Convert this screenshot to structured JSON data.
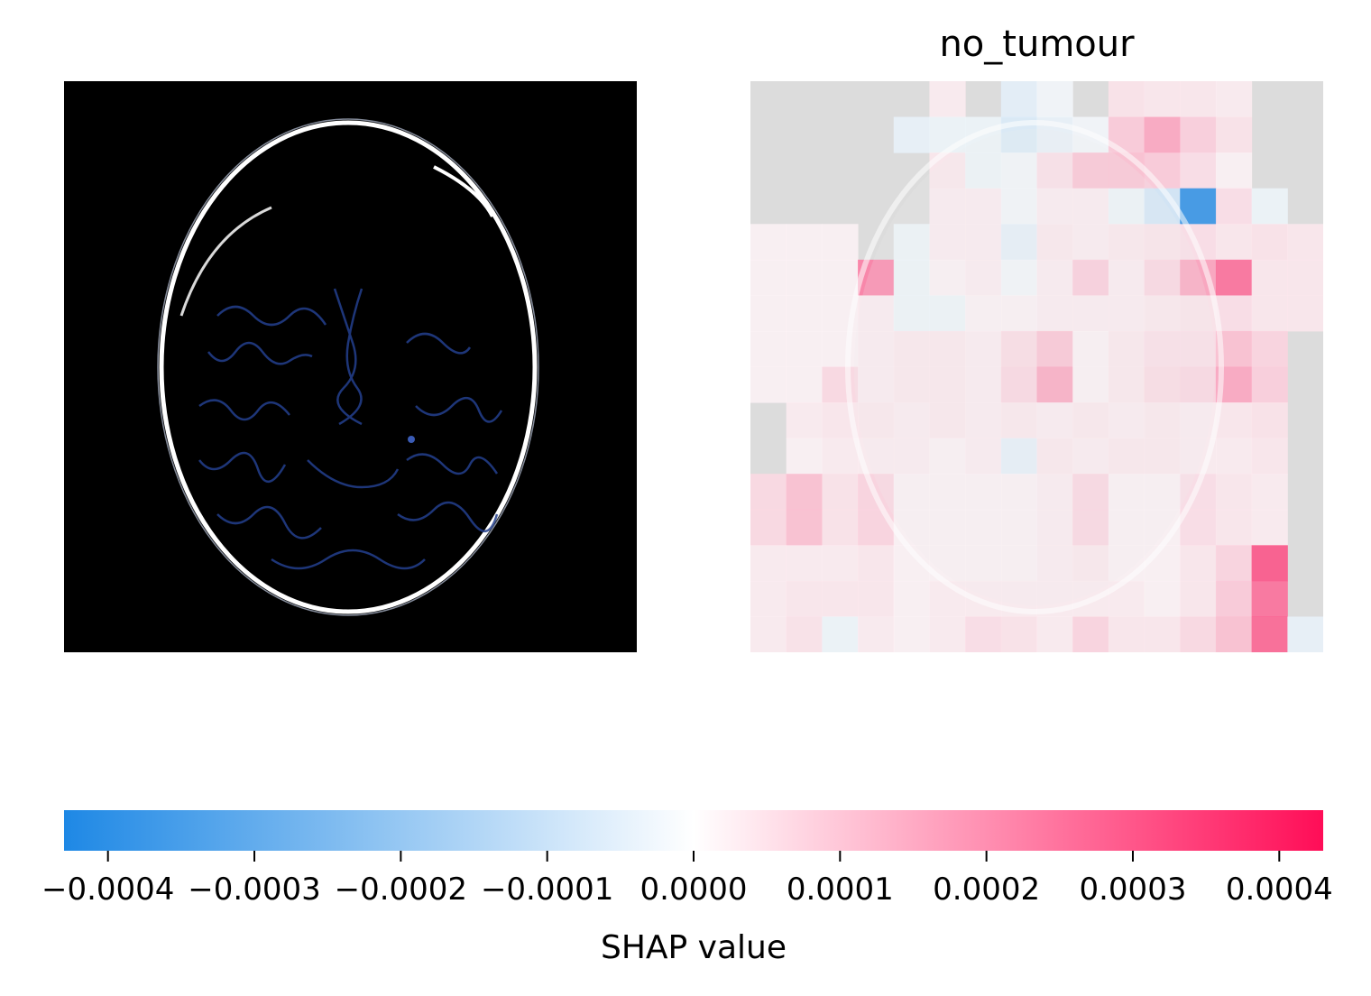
{
  "chart_data": {
    "type": "heatmap",
    "title": "no_tumour",
    "colorbar": {
      "label": "SHAP value",
      "range": [
        -0.00043,
        0.00043
      ],
      "ticks": [
        "−0.0004",
        "−0.0003",
        "−0.0002",
        "−0.0001",
        "0.0000",
        "0.0001",
        "0.0002",
        "0.0003",
        "0.0004"
      ],
      "tick_values": [
        -0.0004,
        -0.0003,
        -0.0002,
        -0.0001,
        0.0,
        0.0001,
        0.0002,
        0.0003,
        0.0004
      ],
      "colors": {
        "negative": "#1E88E5",
        "zero": "#FFFFFF",
        "positive": "#FF0D57"
      }
    },
    "grid_size": [
      16,
      16
    ],
    "values": [
      [
        0,
        0,
        0,
        0,
        0,
        3e-05,
        0,
        -5e-05,
        -2e-05,
        0,
        5e-05,
        4e-05,
        4e-05,
        3e-05,
        0,
        0
      ],
      [
        0,
        0,
        0,
        0,
        -4e-05,
        -3e-05,
        -3e-05,
        -7e-05,
        -4e-05,
        -2e-05,
        0.0001,
        0.00017,
        9e-05,
        5e-05,
        0,
        0
      ],
      [
        0,
        0,
        0,
        0,
        0,
        4e-05,
        -3e-05,
        -2e-05,
        6e-05,
        0.00012,
        0.00012,
        0.0001,
        6e-05,
        2e-05,
        0,
        0
      ],
      [
        0,
        0,
        0,
        0,
        0,
        3e-05,
        3e-05,
        -2e-05,
        3e-05,
        3e-05,
        -3e-05,
        -9e-05,
        -0.00042,
        6e-05,
        -3e-05,
        0
      ],
      [
        2e-05,
        2e-05,
        2e-05,
        0,
        -3e-05,
        3e-05,
        3e-05,
        -5e-05,
        4e-05,
        3e-05,
        4e-05,
        5e-05,
        6e-05,
        4e-05,
        5e-05,
        4e-05
      ],
      [
        2e-05,
        2e-05,
        2e-05,
        0.00025,
        -3e-05,
        2e-05,
        3e-05,
        -2e-05,
        3e-05,
        0.0001,
        3e-05,
        8e-05,
        0.00018,
        0.00028,
        4e-05,
        4e-05
      ],
      [
        2e-05,
        2e-05,
        2e-05,
        3e-05,
        -3e-05,
        -3e-05,
        2e-05,
        2e-05,
        3e-05,
        3e-05,
        3e-05,
        4e-05,
        5e-05,
        6e-05,
        4e-05,
        4e-05
      ],
      [
        2e-05,
        2e-05,
        2e-05,
        3e-05,
        4e-05,
        4e-05,
        3e-05,
        7e-05,
        0.00012,
        2e-05,
        4e-05,
        6e-05,
        6e-05,
        0.00012,
        8e-05,
        0
      ],
      [
        2e-05,
        2e-05,
        7e-05,
        3e-05,
        4e-05,
        4e-05,
        3e-05,
        8e-05,
        0.00018,
        2e-05,
        4e-05,
        7e-05,
        8e-05,
        0.00017,
        9e-05,
        0
      ],
      [
        0,
        3e-05,
        4e-05,
        4e-05,
        3e-05,
        4e-05,
        3e-05,
        4e-05,
        3e-05,
        4e-05,
        3e-05,
        4e-05,
        3e-05,
        4e-05,
        5e-05,
        0
      ],
      [
        0,
        2e-05,
        3e-05,
        3e-05,
        3e-05,
        2e-05,
        3e-05,
        -5e-05,
        4e-05,
        3e-05,
        4e-05,
        4e-05,
        3e-05,
        3e-05,
        4e-05,
        0
      ],
      [
        7e-05,
        0.00012,
        5e-05,
        8e-05,
        2e-05,
        2e-05,
        2e-05,
        2e-05,
        3e-05,
        8e-05,
        2e-05,
        2e-05,
        6e-05,
        4e-05,
        3e-05,
        0
      ],
      [
        7e-05,
        0.00012,
        5e-05,
        8e-05,
        2e-05,
        2e-05,
        2e-05,
        2e-05,
        3e-05,
        8e-05,
        2e-05,
        2e-05,
        6e-05,
        4e-05,
        3e-05,
        0
      ],
      [
        3e-05,
        3e-05,
        3e-05,
        4e-05,
        2e-05,
        2e-05,
        2e-05,
        2e-05,
        3e-05,
        4e-05,
        2e-05,
        2e-05,
        4e-05,
        8e-05,
        0.00033,
        0
      ],
      [
        3e-05,
        4e-05,
        4e-05,
        4e-05,
        2e-05,
        3e-05,
        3e-05,
        3e-05,
        3e-05,
        3e-05,
        3e-05,
        2e-05,
        4e-05,
        0.0001,
        0.00028,
        0
      ],
      [
        3e-05,
        5e-05,
        -3e-05,
        3e-05,
        2e-05,
        3e-05,
        6e-05,
        5e-05,
        3e-05,
        8e-05,
        4e-05,
        4e-05,
        7e-05,
        0.00012,
        0.0003,
        -4e-05
      ]
    ]
  }
}
